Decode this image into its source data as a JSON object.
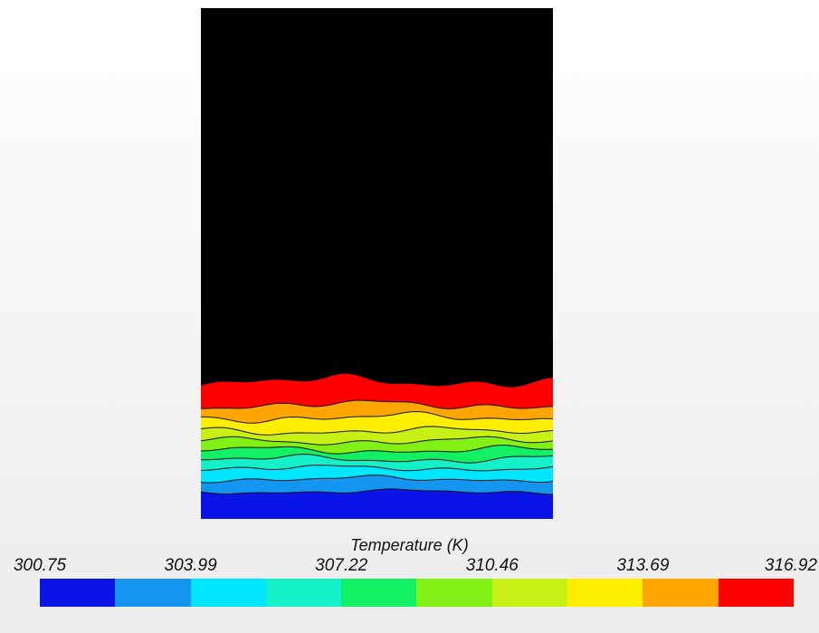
{
  "chart_data": {
    "type": "heatmap",
    "title": "",
    "legend": {
      "title": "Temperature (K)",
      "placement": "bottom",
      "min": 300.75,
      "max": 316.92,
      "tick_labels": [
        "300.75",
        "303.99",
        "307.22",
        "310.46",
        "313.69",
        "316.92"
      ],
      "band_count": 10,
      "band_colors": [
        "#0a14e6",
        "#1496f0",
        "#00e6ff",
        "#14f0c8",
        "#14f064",
        "#82f014",
        "#c8f014",
        "#ffee00",
        "#ffa500",
        "#ff0000"
      ]
    },
    "field": {
      "description_levels_bottom_to_top": [
        300.75,
        302.37,
        303.99,
        305.6,
        307.22,
        308.84,
        310.46,
        312.07,
        313.69,
        315.3,
        316.92
      ],
      "dominant_value": 316.92
    }
  }
}
